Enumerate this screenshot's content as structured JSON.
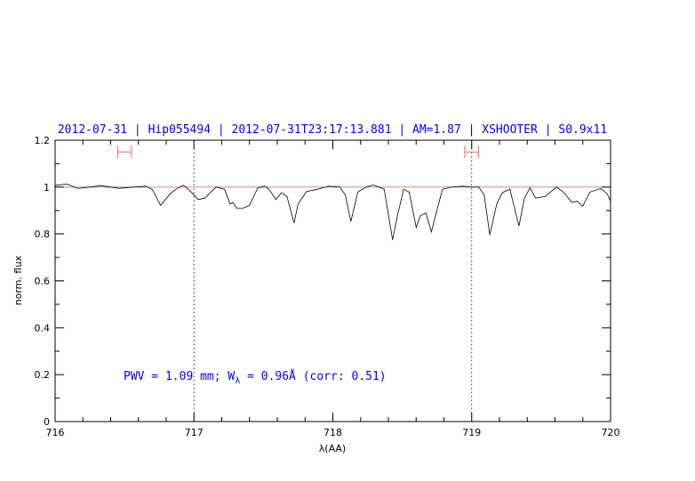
{
  "chart_data": {
    "type": "line",
    "title": "2012-07-31 | Hip055494 | 2012-07-31T23:17:13.881 | AM=1.87 | XSHOOTER | S0.9x11",
    "xlabel": "λ(AA)",
    "ylabel": "norm. flux",
    "xlim": [
      716,
      720
    ],
    "ylim": [
      0,
      1.2
    ],
    "xticks": [
      "716",
      "717",
      "718",
      "719",
      "720"
    ],
    "yticks": [
      "0",
      "0.2",
      "0.4",
      "0.6",
      "0.8",
      "1",
      "1.2"
    ],
    "reference_line": 1.0,
    "vertical_markers": [
      717,
      719
    ],
    "ranges": [
      [
        716.45,
        716.55
      ],
      [
        718.95,
        719.05
      ]
    ],
    "range_marker_level": 1.15,
    "annotation": {
      "prefix": "PWV = 1.09 mm; W",
      "subscript": "λ",
      "suffix": " = 0.96Å (corr: 0.51)"
    },
    "colors": {
      "spectrum": "#000000",
      "reference": "#c08080",
      "ranges": "#ff6060",
      "text": "#0000ee"
    },
    "series": [
      {
        "x": [
          716.0,
          716.01,
          716.085,
          716.166,
          716.33,
          716.46,
          716.65,
          716.7,
          716.76,
          716.83,
          716.87,
          716.925,
          716.97,
          717.03,
          717.08,
          717.12,
          717.16,
          717.22,
          717.26,
          717.28,
          717.31,
          717.35,
          717.4,
          717.46,
          717.51,
          717.54,
          717.59,
          717.63,
          717.67,
          717.72,
          717.75,
          717.81,
          717.89,
          717.97,
          718.05,
          718.09,
          718.13,
          718.18,
          718.24,
          718.29,
          718.33,
          718.37,
          718.43,
          718.47,
          718.51,
          718.55,
          718.6,
          718.63,
          718.67,
          718.71,
          718.75,
          718.79,
          718.86,
          718.94,
          718.99,
          719.05,
          719.09,
          719.13,
          719.18,
          719.22,
          719.275,
          719.34,
          719.38,
          719.42,
          719.46,
          719.53,
          719.61,
          719.66,
          719.72,
          719.76,
          719.8,
          719.85,
          719.93,
          719.975,
          720.0
        ],
        "y": [
          1.005,
          1.008,
          1.013,
          0.994,
          1.006,
          0.995,
          1.004,
          0.99,
          0.922,
          0.972,
          0.991,
          1.008,
          0.985,
          0.947,
          0.953,
          0.979,
          1.0,
          0.991,
          0.928,
          0.934,
          0.909,
          0.909,
          0.922,
          0.997,
          1.004,
          0.991,
          0.947,
          0.976,
          0.96,
          0.847,
          0.928,
          0.981,
          0.991,
          1.004,
          1.0,
          0.966,
          0.853,
          0.979,
          1.0,
          1.009,
          1.001,
          0.991,
          0.775,
          0.89,
          0.991,
          0.979,
          0.828,
          0.878,
          0.89,
          0.809,
          0.903,
          0.991,
          1.001,
          1.004,
          1.0,
          1.001,
          0.966,
          0.796,
          0.928,
          0.976,
          0.991,
          0.834,
          0.953,
          0.997,
          0.953,
          0.96,
          1.0,
          0.979,
          0.935,
          0.94,
          0.918,
          0.979,
          0.994,
          0.972,
          0.94
        ]
      }
    ]
  }
}
